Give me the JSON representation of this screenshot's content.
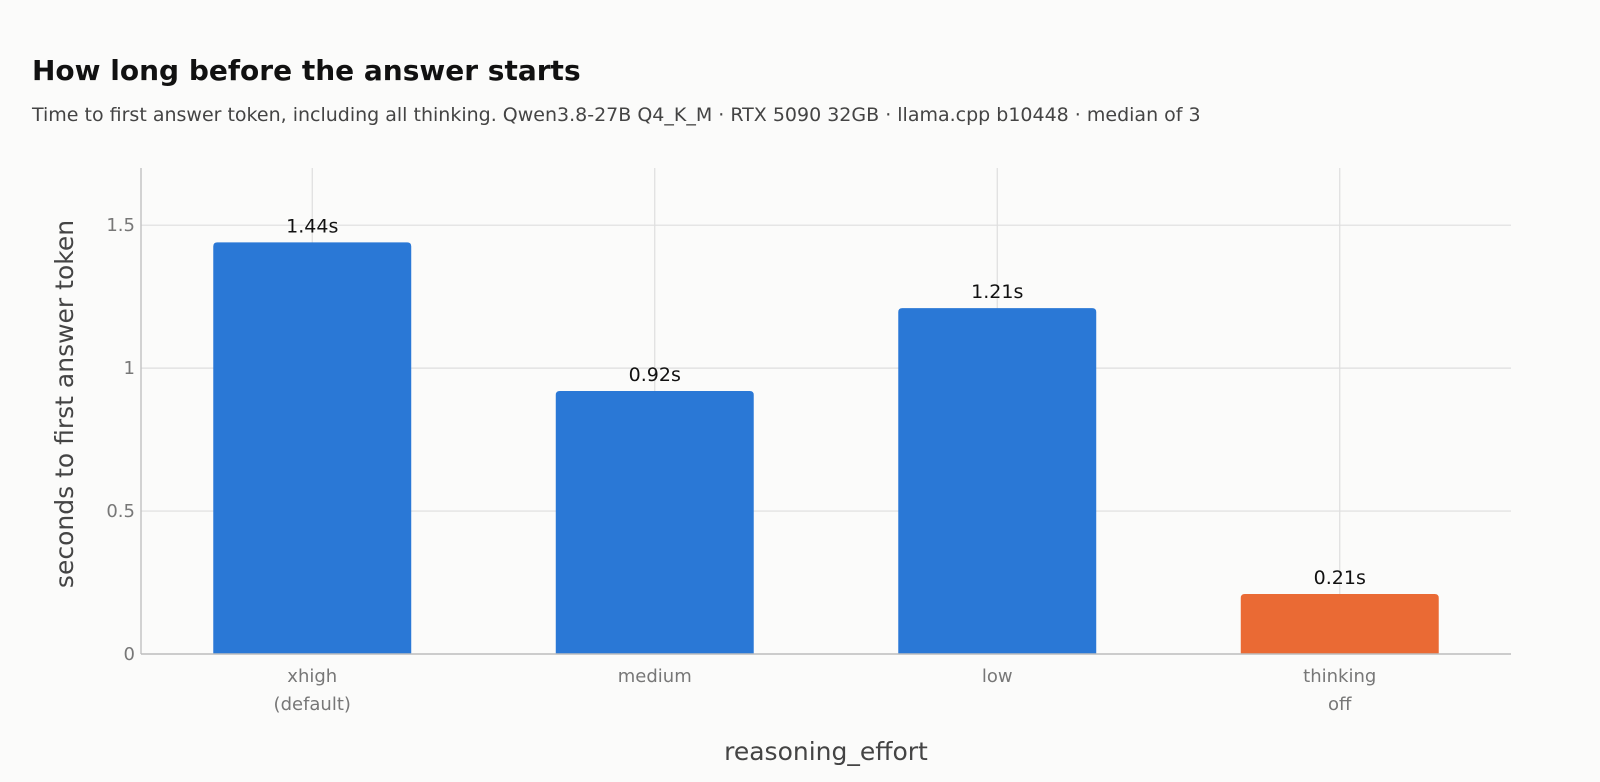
{
  "chart_data": {
    "type": "bar",
    "title": "How long before the answer starts",
    "subtitle": "Time to first answer token, including all thinking. Qwen3.8-27B Q4_K_M · RTX 5090 32GB · llama.cpp b10448 · median of 3",
    "categories": [
      [
        "xhigh",
        "(default)"
      ],
      [
        "medium"
      ],
      [
        "low"
      ],
      [
        "thinking",
        "off"
      ]
    ],
    "values": [
      1.44,
      0.92,
      1.21,
      0.21
    ],
    "value_labels": [
      "1.44s",
      "0.92s",
      "1.21s",
      "0.21s"
    ],
    "bar_colors": [
      "#2a78d6",
      "#2a78d6",
      "#2a78d6",
      "#ea6a34"
    ],
    "xlabel": "reasoning_effort",
    "ylabel": "seconds to first answer token",
    "ylim": [
      0,
      1.7
    ],
    "yticks": [
      0,
      0.5,
      1,
      1.5
    ],
    "ytick_labels": [
      "0",
      "0.5",
      "1",
      "1.5"
    ],
    "grid": true,
    "legend": "none"
  }
}
